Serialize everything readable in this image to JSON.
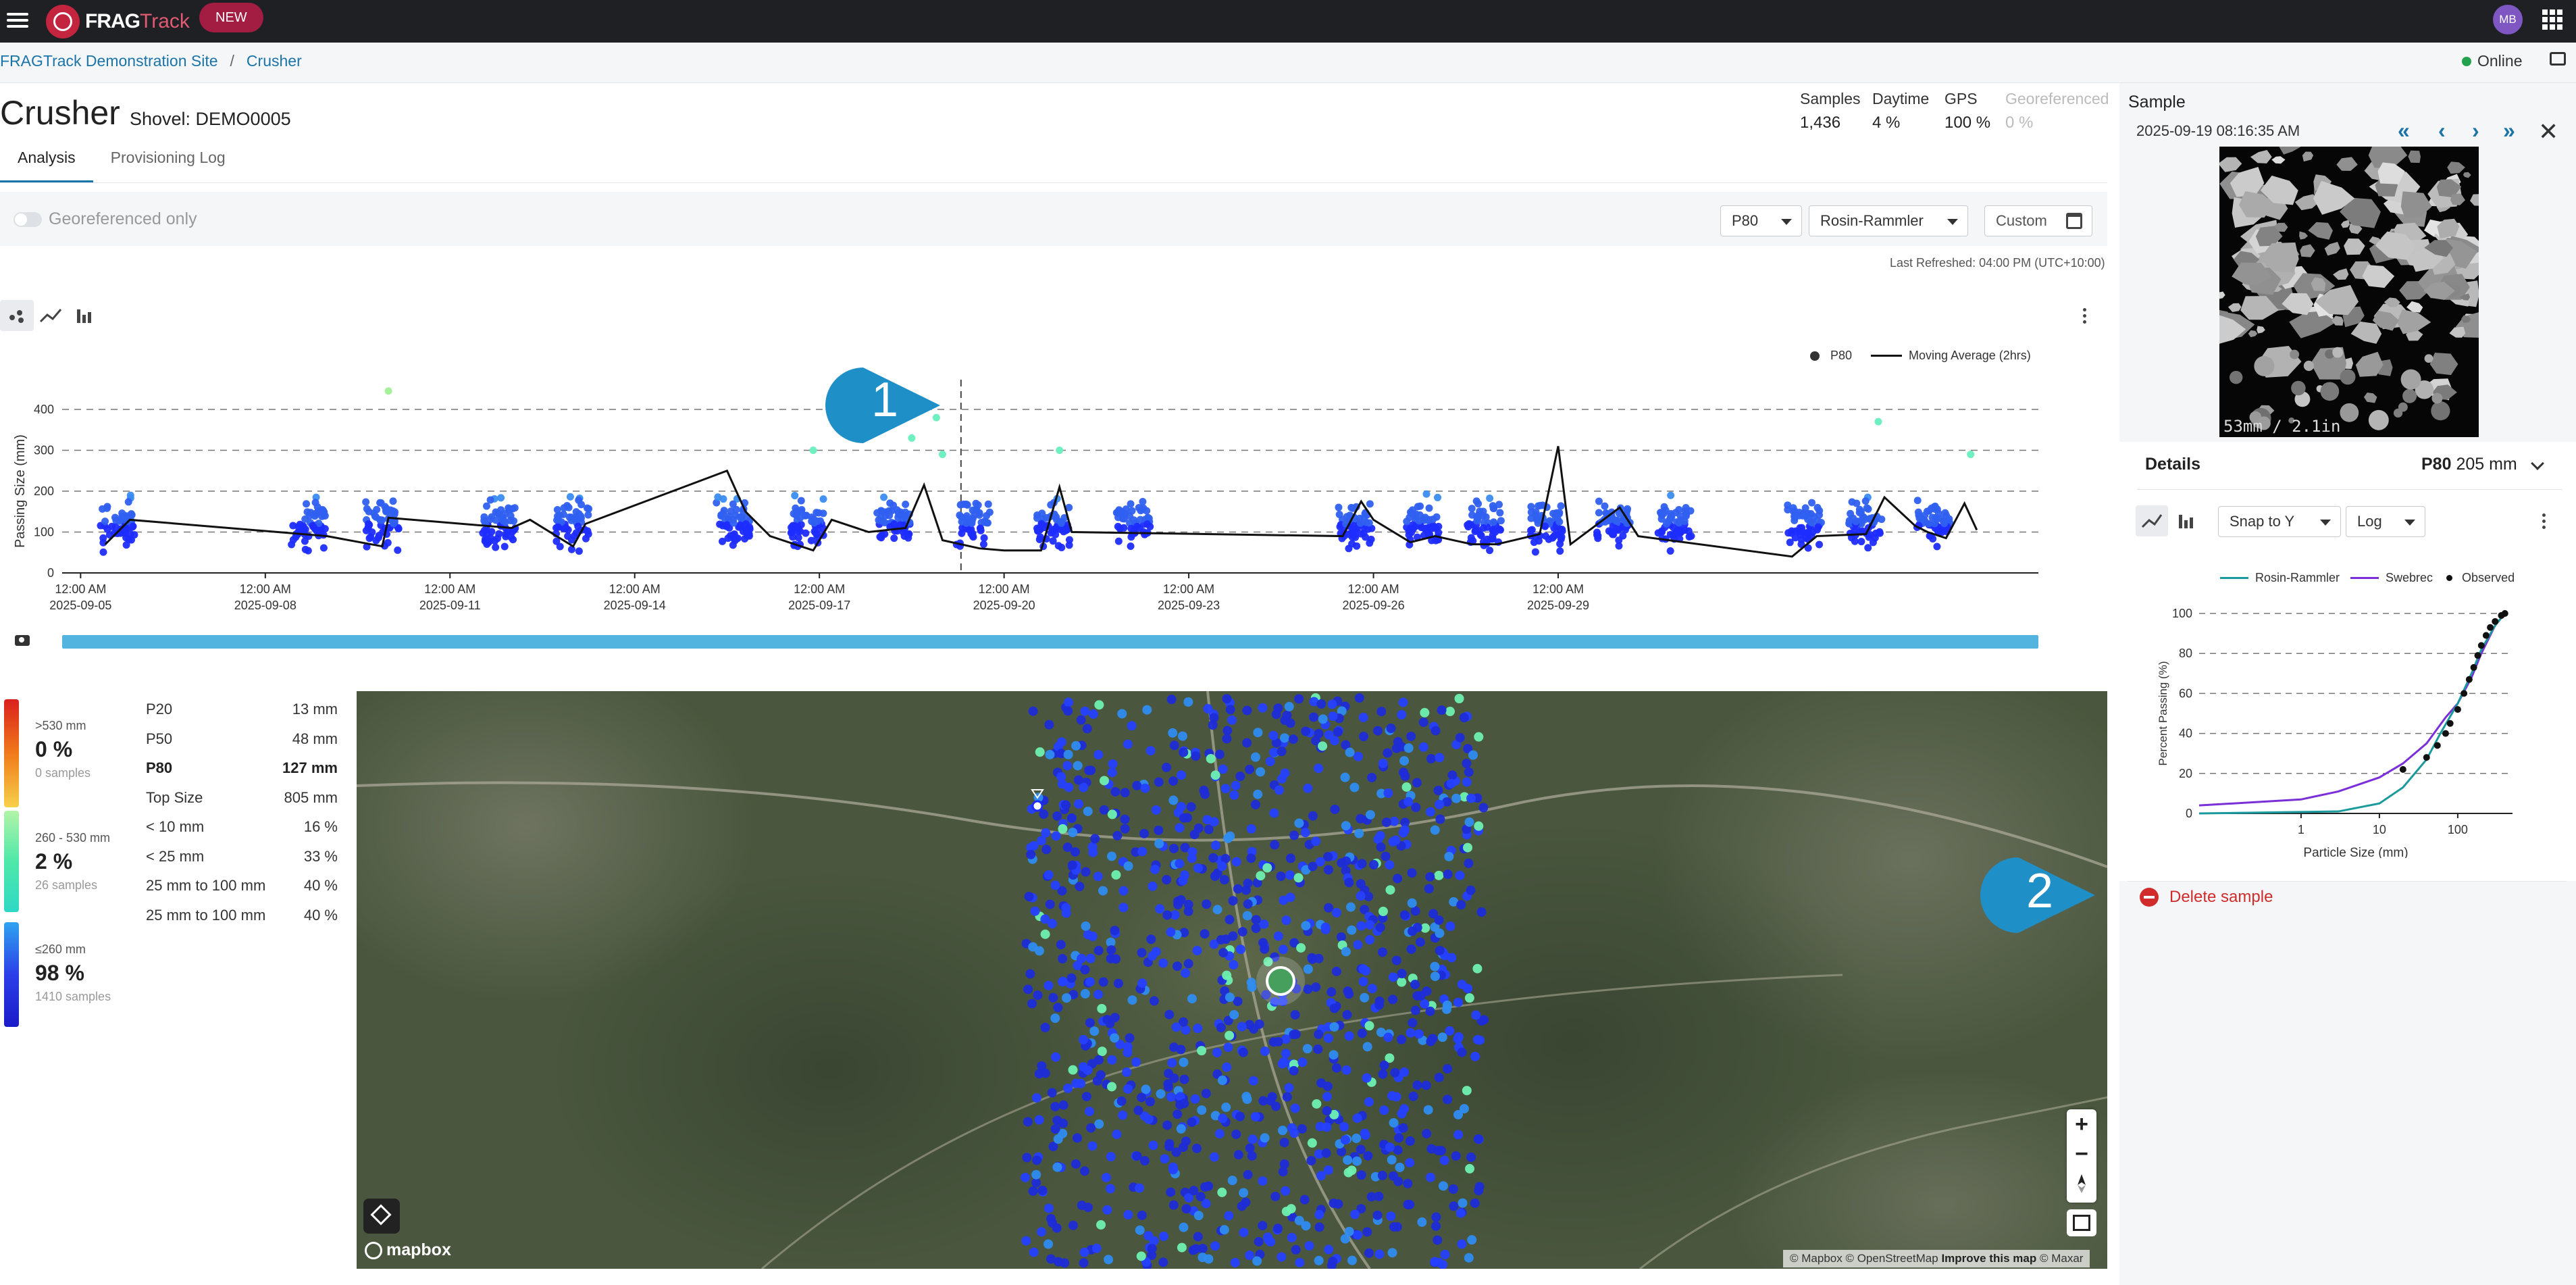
{
  "app": {
    "brand_a": "FRAG",
    "brand_b": "Track",
    "new_badge": "NEW",
    "user_initials": "MB"
  },
  "breadcrumb": [
    "FRAGTrack Demonstration Site",
    "Crusher"
  ],
  "status": {
    "online": "Online"
  },
  "header": {
    "title": "Crusher",
    "subtitle": "Shovel: DEMO0005"
  },
  "stats": [
    {
      "label": "Samples",
      "value": "1,436"
    },
    {
      "label": "Daytime",
      "value": "4 %"
    },
    {
      "label": "GPS",
      "value": "100 %"
    },
    {
      "label": "Georeferenced",
      "value": "0 %"
    }
  ],
  "tabs": [
    "Analysis",
    "Provisioning Log"
  ],
  "toolbar": {
    "toggle_label": "Georeferenced only",
    "metric": "P80",
    "model": "Rosin-Rammler",
    "range": "Custom",
    "last_refreshed": "Last Refreshed: 04:00 PM (UTC+10:00)"
  },
  "chart_data": {
    "type": "scatter",
    "series": [
      {
        "name": "P80"
      },
      {
        "name": "Moving Average (2hrs)"
      }
    ],
    "ylabel": "Passing Size (mm)",
    "y_ticks": [
      "0",
      "100",
      "200",
      "300",
      "400"
    ],
    "ylim": [
      0,
      400
    ],
    "x_ticks": [
      {
        "time": "12:00 AM",
        "date": "2025-09-05"
      },
      {
        "time": "12:00 AM",
        "date": "2025-09-08"
      },
      {
        "time": "12:00 AM",
        "date": "2025-09-11"
      },
      {
        "time": "12:00 AM",
        "date": "2025-09-14"
      },
      {
        "time": "12:00 AM",
        "date": "2025-09-17"
      },
      {
        "time": "12:00 AM",
        "date": "2025-09-20"
      },
      {
        "time": "12:00 AM",
        "date": "2025-09-23"
      },
      {
        "time": "12:00 AM",
        "date": "2025-09-26"
      },
      {
        "time": "12:00 AM",
        "date": "2025-09-29"
      }
    ],
    "xlim_days": [
      -0.3,
      27.8
    ],
    "clusters_day": [
      0.6,
      3.7,
      4.9,
      6.8,
      8.0,
      10.6,
      11.8,
      13.2,
      14.5,
      15.8,
      17.1,
      20.7,
      21.8,
      22.8,
      23.8,
      24.9,
      25.9,
      28.0,
      29.0,
      30.1
    ],
    "moving_average": [
      [
        0.4,
        70
      ],
      [
        0.8,
        130
      ],
      [
        3.6,
        95
      ],
      [
        4.0,
        90
      ],
      [
        4.9,
        65
      ],
      [
        5.0,
        135
      ],
      [
        7.0,
        110
      ],
      [
        7.3,
        130
      ],
      [
        8.0,
        65
      ],
      [
        8.2,
        120
      ],
      [
        10.5,
        250
      ],
      [
        10.8,
        150
      ],
      [
        11.2,
        90
      ],
      [
        11.9,
        55
      ],
      [
        12.2,
        130
      ],
      [
        12.8,
        100
      ],
      [
        13.4,
        110
      ],
      [
        13.7,
        215
      ],
      [
        14.0,
        80
      ],
      [
        14.6,
        60
      ],
      [
        15.0,
        55
      ],
      [
        15.6,
        55
      ],
      [
        15.9,
        210
      ],
      [
        16.1,
        100
      ],
      [
        20.5,
        90
      ],
      [
        20.8,
        175
      ],
      [
        21.0,
        130
      ],
      [
        21.6,
        75
      ],
      [
        22.0,
        90
      ],
      [
        22.6,
        70
      ],
      [
        23.0,
        70
      ],
      [
        23.7,
        95
      ],
      [
        24.0,
        310
      ],
      [
        24.2,
        70
      ],
      [
        25.0,
        160
      ],
      [
        25.3,
        90
      ],
      [
        27.8,
        40
      ],
      [
        28.2,
        90
      ],
      [
        29.0,
        95
      ],
      [
        29.3,
        185
      ],
      [
        29.8,
        115
      ],
      [
        30.0,
        100
      ],
      [
        30.3,
        85
      ],
      [
        30.6,
        170
      ],
      [
        30.8,
        105
      ]
    ]
  },
  "size_bands": [
    {
      "range": ">530 mm",
      "pct": "0 %",
      "count": "0 samples"
    },
    {
      "range": "260 - 530 mm",
      "pct": "2 %",
      "count": "26 samples"
    },
    {
      "range": "≤260 mm",
      "pct": "98 %",
      "count": "1410 samples"
    }
  ],
  "percentiles": [
    {
      "label": "P20",
      "value": "13 mm",
      "bold": false
    },
    {
      "label": "P50",
      "value": "48 mm",
      "bold": false
    },
    {
      "label": "P80",
      "value": "127 mm",
      "bold": true
    },
    {
      "label": "Top Size",
      "value": "805 mm",
      "bold": false
    },
    {
      "label": "< 10 mm",
      "value": "16 %",
      "bold": false
    },
    {
      "label": "< 25 mm",
      "value": "33 %",
      "bold": false
    },
    {
      "label": "25 mm to 100 mm",
      "value": "40 %",
      "bold": false
    },
    {
      "label": "25 mm to 100 mm",
      "value": "40 %",
      "bold": false
    }
  ],
  "map": {
    "attribution_a": "© Mapbox © OpenStreetMap",
    "attribution_link": "Improve this map",
    "attribution_b": "© Maxar",
    "logo": "mapbox",
    "zoom_in": "+",
    "zoom_out": "−"
  },
  "callouts": [
    "1",
    "2"
  ],
  "sample": {
    "title": "Sample",
    "timestamp": "2025-09-19 08:16:35 AM",
    "image_caption": "53mm / 2.1in",
    "nav": [
      "«",
      "‹",
      "›",
      "»",
      "✕"
    ]
  },
  "details": {
    "title": "Details",
    "p80_label": "P80",
    "p80_value": "205 mm",
    "snap": "Snap to Y",
    "scale": "Log",
    "delete_label": "Delete sample"
  },
  "curve_chart": {
    "type": "line",
    "series": [
      {
        "name": "Rosin-Rammler"
      },
      {
        "name": "Swebrec"
      },
      {
        "name": "Observed"
      }
    ],
    "colors": {
      "rosin": "#1a9a9c",
      "swebrec": "#7a2fd8",
      "observed": "#111111"
    },
    "xlabel": "Particle Size (mm)",
    "ylabel": "Percent Passing (%)",
    "x_ticks": [
      "1",
      "10",
      "100"
    ],
    "y_ticks": [
      "0",
      "20",
      "40",
      "60",
      "80",
      "100"
    ],
    "xlim": [
      0.05,
      500
    ],
    "ylim": [
      0,
      100
    ],
    "rosin": [
      [
        0.05,
        0
      ],
      [
        3,
        1
      ],
      [
        10,
        5
      ],
      [
        20,
        13
      ],
      [
        40,
        27
      ],
      [
        60,
        40
      ],
      [
        100,
        55
      ],
      [
        150,
        70
      ],
      [
        200,
        82
      ],
      [
        300,
        94
      ],
      [
        400,
        100
      ]
    ],
    "swebrec": [
      [
        0.05,
        4
      ],
      [
        1,
        7
      ],
      [
        3,
        11
      ],
      [
        10,
        18
      ],
      [
        20,
        25
      ],
      [
        40,
        35
      ],
      [
        70,
        48
      ],
      [
        100,
        55
      ],
      [
        150,
        68
      ],
      [
        200,
        80
      ],
      [
        300,
        94
      ],
      [
        400,
        100
      ]
    ],
    "observed": [
      [
        20,
        22
      ],
      [
        40,
        28
      ],
      [
        55,
        34
      ],
      [
        70,
        40
      ],
      [
        80,
        45
      ],
      [
        100,
        52
      ],
      [
        120,
        60
      ],
      [
        140,
        67
      ],
      [
        160,
        73
      ],
      [
        180,
        79
      ],
      [
        200,
        84
      ],
      [
        230,
        89
      ],
      [
        260,
        93
      ],
      [
        300,
        96
      ],
      [
        360,
        99
      ],
      [
        400,
        100
      ]
    ]
  }
}
